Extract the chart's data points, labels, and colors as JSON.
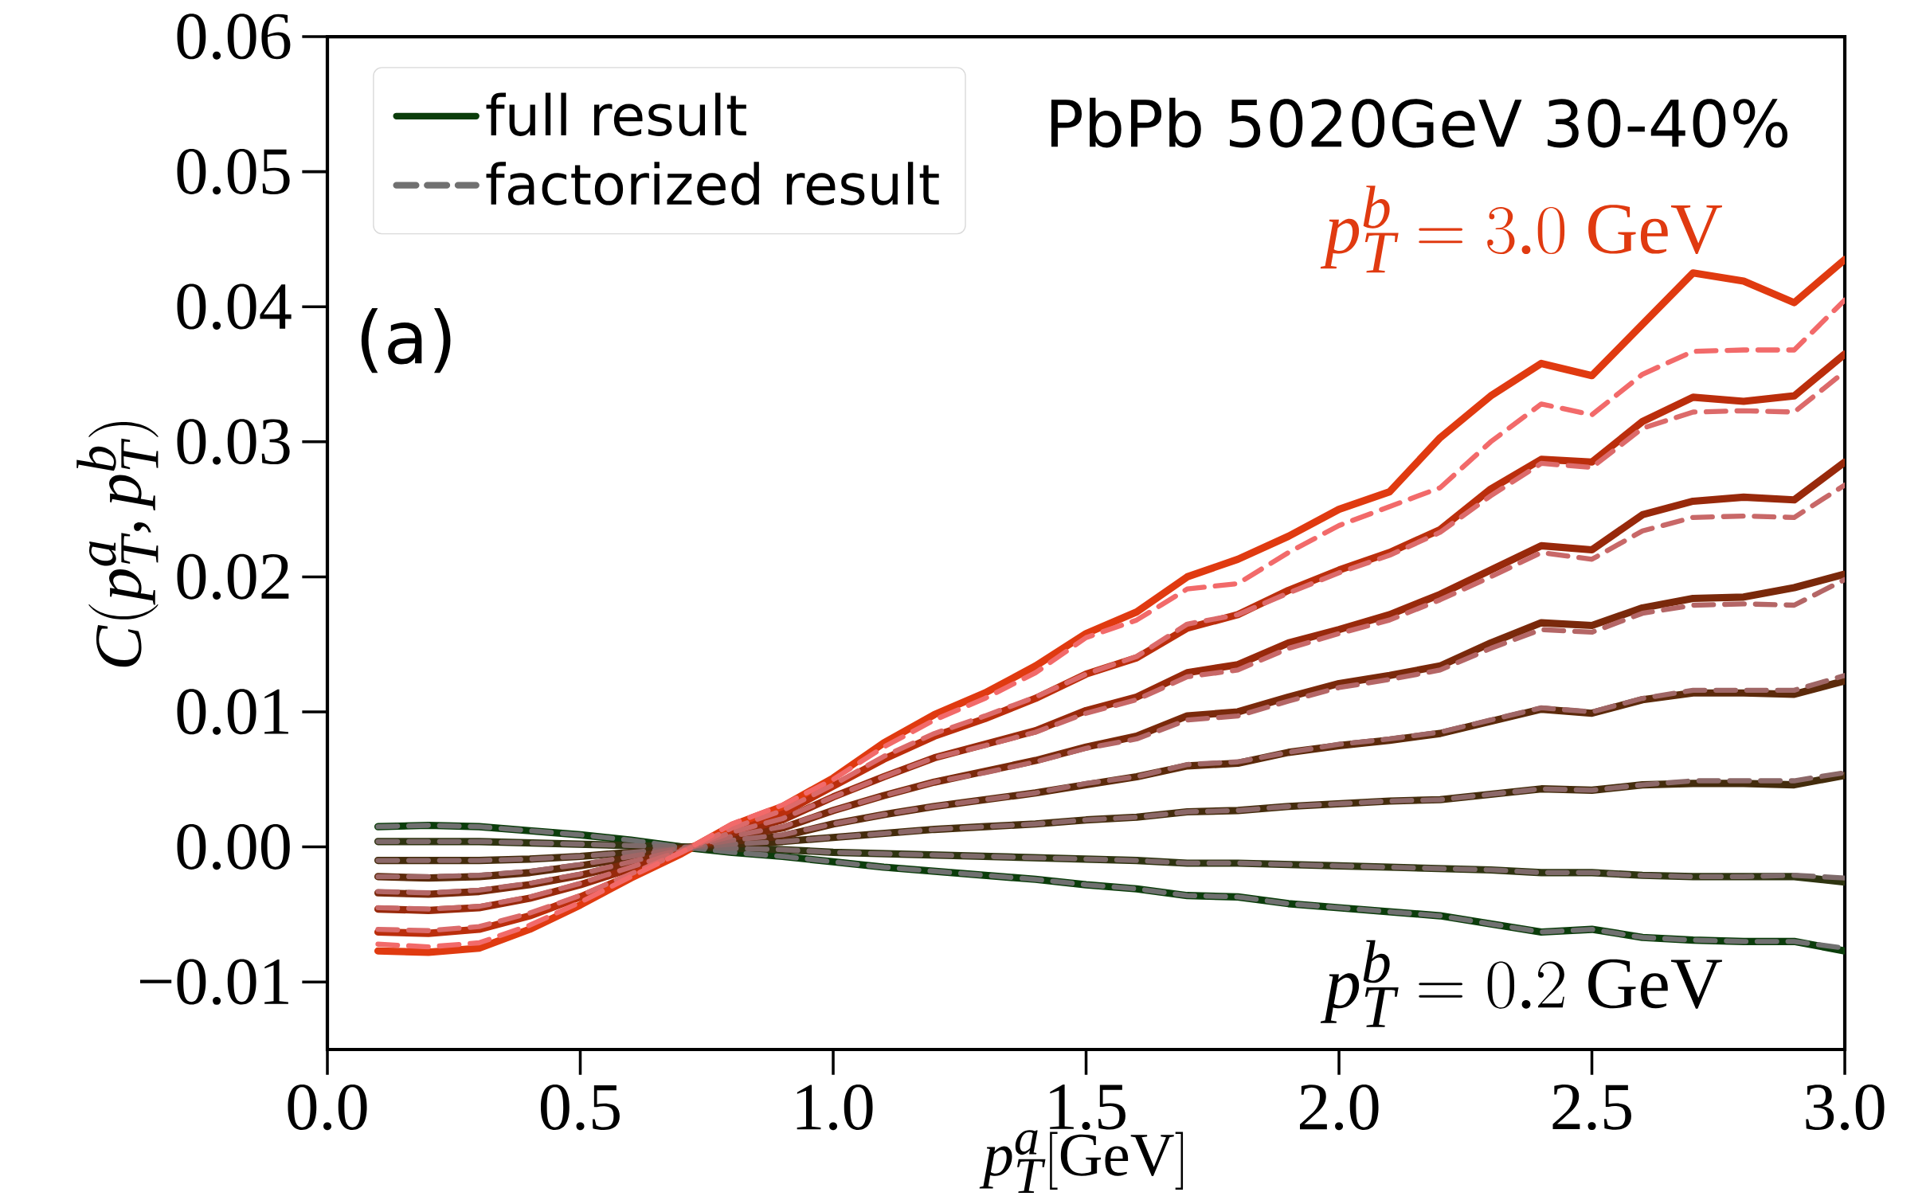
{
  "chart_data": {
    "type": "line",
    "xlabel": "p_T^a[\\mathrm{GeV}]",
    "ylabel": "C(p_T^a, p_T^b)",
    "annotations": [
      "PbPb 5020GeV 30-40%",
      "p_T^b = 3.0\\ \\mathrm{GeV}",
      "p_T^b = 0.2\\ \\mathrm{GeV}",
      "(a)"
    ],
    "x": [
      0.1,
      0.2,
      0.3,
      0.4,
      0.5,
      0.6,
      0.7,
      0.8,
      0.9,
      1.0,
      1.1,
      1.2,
      1.3,
      1.4,
      1.5,
      1.6,
      1.7,
      1.8,
      1.9,
      2.0,
      2.1,
      2.2,
      2.3,
      2.4,
      2.5,
      2.6,
      2.7,
      2.8,
      2.9,
      3.0
    ],
    "xlim": [
      0,
      3
    ],
    "ylim": [
      -0.015,
      0.06
    ],
    "xticks": [
      {
        "value": 0,
        "label": "0.0"
      },
      {
        "value": 0.5,
        "label": "0.5"
      },
      {
        "value": 1,
        "label": "1.0"
      },
      {
        "value": 1.5,
        "label": "1.5"
      },
      {
        "value": 2,
        "label": "2.0"
      },
      {
        "value": 2.5,
        "label": "2.5"
      },
      {
        "value": 3,
        "label": "3.0"
      }
    ],
    "yticks": [
      {
        "value": -0.01,
        "label": "−0.01"
      },
      {
        "value": 0,
        "label": "0.00"
      },
      {
        "value": 0.01,
        "label": "0.01"
      },
      {
        "value": 0.02,
        "label": "0.02"
      },
      {
        "value": 0.03,
        "label": "0.03"
      },
      {
        "value": 0.04,
        "label": "0.04"
      },
      {
        "value": 0.05,
        "label": "0.05"
      },
      {
        "value": 0.06,
        "label": "0.06"
      }
    ],
    "legend": "top left",
    "grid": false,
    "series": [
      {
        "name": "full result",
        "color": "#0b3d0b",
        "line_style": "solid",
        "values": [
          0.0015,
          0.0016,
          0.0015,
          0.0012,
          0.0009,
          0.0005,
          0,
          -0.0004,
          -0.0007,
          -0.0011,
          -0.0015,
          -0.0018,
          -0.0021,
          -0.0024,
          -0.0028,
          -0.0031,
          -0.0036,
          -0.0037,
          -0.0042,
          -0.0045,
          -0.0048,
          -0.0051,
          -0.0057,
          -0.0063,
          -0.0061,
          -0.0067,
          -0.0069,
          -0.007,
          -0.007,
          -0.0077
        ]
      },
      {
        "color": "#2e3410",
        "line_style": "solid",
        "values": [
          0.0004,
          0.0004,
          0.0004,
          0.0003,
          0.0002,
          0.0001,
          0,
          -0.0001,
          -0.0002,
          -0.0004,
          -0.0005,
          -0.0006,
          -0.0007,
          -0.0008,
          -0.0009,
          -0.001,
          -0.0012,
          -0.0012,
          -0.0013,
          -0.0014,
          -0.0015,
          -0.0016,
          -0.0017,
          -0.0019,
          -0.0019,
          -0.0021,
          -0.0022,
          -0.0022,
          -0.0022,
          -0.0026
        ]
      },
      {
        "color": "#442c0c",
        "line_style": "solid",
        "values": [
          -0.001,
          -0.001,
          -0.001,
          -0.0009,
          -0.0007,
          -0.0004,
          -0.0001,
          0.0002,
          0.0004,
          0.0007,
          0.001,
          0.0013,
          0.0015,
          0.0017,
          0.002,
          0.0022,
          0.0026,
          0.0027,
          0.003,
          0.0032,
          0.0034,
          0.0035,
          0.0039,
          0.0043,
          0.0042,
          0.0046,
          0.0047,
          0.0047,
          0.0046,
          0.0053
        ]
      },
      {
        "color": "#5c2a0b",
        "line_style": "solid",
        "values": [
          -0.0022,
          -0.0023,
          -0.0022,
          -0.0019,
          -0.0014,
          -0.0008,
          -0.0001,
          0.0004,
          0.0008,
          0.0017,
          0.0024,
          0.003,
          0.0035,
          0.004,
          0.0046,
          0.0052,
          0.006,
          0.0062,
          0.007,
          0.0075,
          0.0079,
          0.0084,
          0.0093,
          0.0102,
          0.0099,
          0.0109,
          0.0114,
          0.0114,
          0.0113,
          0.0123
        ]
      },
      {
        "color": "#7a290b",
        "line_style": "solid",
        "values": [
          -0.0034,
          -0.0035,
          -0.0033,
          -0.0028,
          -0.0021,
          -0.0012,
          -0.0002,
          0.0007,
          0.0014,
          0.0027,
          0.0038,
          0.0048,
          0.0056,
          0.0064,
          0.0074,
          0.0082,
          0.0097,
          0.01,
          0.0111,
          0.0121,
          0.0127,
          0.0134,
          0.0151,
          0.0166,
          0.0164,
          0.0177,
          0.0184,
          0.0185,
          0.0192,
          0.0202
        ]
      },
      {
        "color": "#98290b",
        "line_style": "solid",
        "values": [
          -0.0046,
          -0.0047,
          -0.0045,
          -0.0038,
          -0.0028,
          -0.0016,
          -0.0003,
          0.001,
          0.002,
          0.0037,
          0.0052,
          0.0066,
          0.0076,
          0.0086,
          0.0101,
          0.0111,
          0.0129,
          0.0135,
          0.0151,
          0.0161,
          0.0172,
          0.0187,
          0.0205,
          0.0223,
          0.022,
          0.0246,
          0.0256,
          0.0259,
          0.0257,
          0.0285
        ]
      },
      {
        "color": "#bb2e0c",
        "line_style": "solid",
        "values": [
          -0.0063,
          -0.0064,
          -0.0061,
          -0.0051,
          -0.0037,
          -0.0021,
          -0.0004,
          0.0013,
          0.0025,
          0.0045,
          0.0065,
          0.0082,
          0.0095,
          0.011,
          0.0128,
          0.014,
          0.0162,
          0.0172,
          0.019,
          0.0205,
          0.0218,
          0.0235,
          0.0265,
          0.0287,
          0.0285,
          0.0315,
          0.0333,
          0.033,
          0.0334,
          0.0365
        ]
      },
      {
        "color": "#e03a10",
        "line_style": "solid",
        "values": [
          -0.0077,
          -0.0078,
          -0.0075,
          -0.0061,
          -0.0043,
          -0.0023,
          -0.0005,
          0.0016,
          0.003,
          0.0051,
          0.0077,
          0.0098,
          0.0114,
          0.0134,
          0.0158,
          0.0174,
          0.02,
          0.0213,
          0.023,
          0.025,
          0.0263,
          0.0303,
          0.0334,
          0.0358,
          0.0349,
          0.0387,
          0.0425,
          0.0419,
          0.0403,
          0.0435
        ]
      },
      {
        "name": "factorized result",
        "color": "#707070",
        "line_style": "dashed",
        "values": [
          0.0015,
          0.0016,
          0.0015,
          0.0012,
          0.0009,
          0.0005,
          0,
          -0.0004,
          -0.0007,
          -0.0011,
          -0.0015,
          -0.0018,
          -0.0021,
          -0.0024,
          -0.0028,
          -0.0031,
          -0.0036,
          -0.0037,
          -0.0042,
          -0.0045,
          -0.0048,
          -0.0051,
          -0.0057,
          -0.0063,
          -0.0061,
          -0.0067,
          -0.0069,
          -0.007,
          -0.007,
          -0.0075
        ]
      },
      {
        "color": "#7e6a6a",
        "line_style": "dashed",
        "values": [
          0.0004,
          0.0004,
          0.0004,
          0.0003,
          0.0002,
          0.0001,
          0,
          -0.0001,
          -0.0002,
          -0.0004,
          -0.0005,
          -0.0006,
          -0.0007,
          -0.0008,
          -0.0009,
          -0.001,
          -0.0012,
          -0.0012,
          -0.0013,
          -0.0014,
          -0.0015,
          -0.0016,
          -0.0017,
          -0.0019,
          -0.0019,
          -0.0021,
          -0.0022,
          -0.0022,
          -0.0021,
          -0.0023
        ]
      },
      {
        "color": "#8c6868",
        "line_style": "dashed",
        "values": [
          -0.001,
          -0.001,
          -0.001,
          -0.0009,
          -0.0007,
          -0.0004,
          -0.0001,
          0.0002,
          0.0004,
          0.0007,
          0.001,
          0.0013,
          0.0015,
          0.0017,
          0.002,
          0.0022,
          0.0026,
          0.0027,
          0.003,
          0.0032,
          0.0034,
          0.0035,
          0.0039,
          0.0043,
          0.0042,
          0.0046,
          0.0049,
          0.0049,
          0.0049,
          0.0055
        ]
      },
      {
        "color": "#a06666",
        "line_style": "dashed",
        "values": [
          -0.0022,
          -0.0022,
          -0.0021,
          -0.0018,
          -0.0013,
          -0.0007,
          -0.0001,
          0.0005,
          0.0009,
          0.0017,
          0.0024,
          0.003,
          0.0035,
          0.004,
          0.0047,
          0.0052,
          0.0061,
          0.0063,
          0.007,
          0.0076,
          0.008,
          0.0085,
          0.0094,
          0.0103,
          0.01,
          0.011,
          0.0116,
          0.0116,
          0.0116,
          0.0127
        ]
      },
      {
        "color": "#b46666",
        "line_style": "dashed",
        "values": [
          -0.0033,
          -0.0034,
          -0.0032,
          -0.0027,
          -0.002,
          -0.0011,
          -0.0002,
          0.0008,
          0.0015,
          0.0027,
          0.0038,
          0.0048,
          0.0055,
          0.0063,
          0.0073,
          0.008,
          0.0094,
          0.0097,
          0.0108,
          0.0118,
          0.0124,
          0.0131,
          0.0147,
          0.0161,
          0.0159,
          0.0173,
          0.0179,
          0.018,
          0.0179,
          0.0198
        ]
      },
      {
        "color": "#c86868",
        "line_style": "dashed",
        "values": [
          -0.0045,
          -0.0046,
          -0.0044,
          -0.0037,
          -0.0027,
          -0.0015,
          -0.0003,
          0.0011,
          0.0021,
          0.0037,
          0.0052,
          0.0066,
          0.0075,
          0.0085,
          0.0099,
          0.0109,
          0.0126,
          0.0131,
          0.0147,
          0.0158,
          0.0168,
          0.0183,
          0.02,
          0.0218,
          0.0213,
          0.0234,
          0.0244,
          0.0245,
          0.0244,
          0.0268
        ]
      },
      {
        "color": "#dc6a6a",
        "line_style": "dashed",
        "values": [
          -0.0061,
          -0.0062,
          -0.0059,
          -0.0049,
          -0.0036,
          -0.002,
          -0.0004,
          0.0014,
          0.0027,
          0.0046,
          0.0067,
          0.0084,
          0.0097,
          0.0111,
          0.0128,
          0.0141,
          0.0165,
          0.0172,
          0.0188,
          0.0203,
          0.0216,
          0.0233,
          0.026,
          0.0284,
          0.0281,
          0.031,
          0.0322,
          0.0323,
          0.0322,
          0.0352
        ]
      },
      {
        "color": "#f26a6a",
        "line_style": "dashed",
        "values": [
          -0.0072,
          -0.0074,
          -0.0071,
          -0.0058,
          -0.0041,
          -0.0022,
          -0.0004,
          0.0017,
          0.0031,
          0.005,
          0.0074,
          0.0094,
          0.011,
          0.0129,
          0.0155,
          0.0168,
          0.0191,
          0.0195,
          0.0218,
          0.0238,
          0.0252,
          0.0266,
          0.03,
          0.0328,
          0.032,
          0.035,
          0.0367,
          0.0368,
          0.0368,
          0.0405
        ]
      }
    ]
  }
}
